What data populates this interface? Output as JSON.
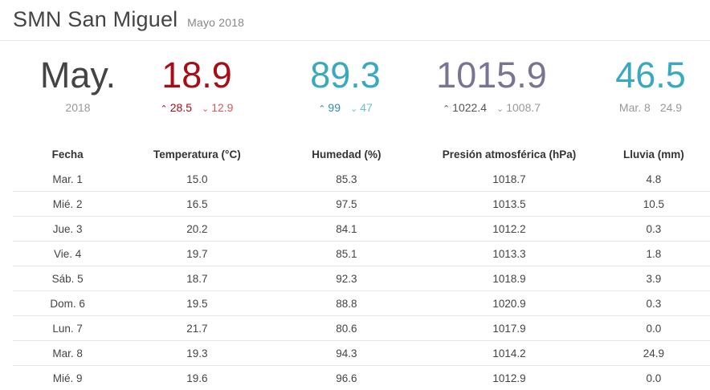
{
  "header": {
    "title": "SMN San Miguel",
    "subtitle": "Mayo 2018"
  },
  "summary": {
    "period": {
      "big": "May.",
      "sub": "2018"
    },
    "temperature": {
      "value": "18.9",
      "max": "28.5",
      "min": "12.9",
      "color": "#a80c16",
      "max_color": "#a80c16",
      "min_color": "#d35a5a"
    },
    "humidity": {
      "value": "89.3",
      "max": "99",
      "min": "47",
      "color": "#3aa9c0",
      "max_color": "#2f8ea3",
      "min_color": "#6bbfd1"
    },
    "pressure": {
      "value": "1015.9",
      "max": "1022.4",
      "min": "1008.7",
      "color": "#7a7393",
      "max_color": "#555",
      "min_color": "#999"
    },
    "rain": {
      "value": "46.5",
      "max_day": "Mar. 8",
      "max_value": "24.9",
      "color": "#3aa9c0"
    },
    "icons": {
      "up": "chevron-up-icon",
      "down": "chevron-down-icon"
    }
  },
  "table": {
    "headers": [
      "Fecha",
      "Temperatura (°C)",
      "Humedad (%)",
      "Presión atmosférica (hPa)",
      "Lluvia (mm)"
    ],
    "rows": [
      [
        "Mar. 1",
        "15.0",
        "85.3",
        "1018.7",
        "4.8"
      ],
      [
        "Mié. 2",
        "16.5",
        "97.5",
        "1013.5",
        "10.5"
      ],
      [
        "Jue. 3",
        "20.2",
        "84.1",
        "1012.2",
        "0.3"
      ],
      [
        "Vie. 4",
        "19.7",
        "85.1",
        "1013.3",
        "1.8"
      ],
      [
        "Sáb. 5",
        "18.7",
        "92.3",
        "1018.9",
        "3.9"
      ],
      [
        "Dom. 6",
        "19.5",
        "88.8",
        "1020.9",
        "0.3"
      ],
      [
        "Lun. 7",
        "21.7",
        "80.6",
        "1017.9",
        "0.0"
      ],
      [
        "Mar. 8",
        "19.3",
        "94.3",
        "1014.2",
        "24.9"
      ],
      [
        "Mié. 9",
        "19.6",
        "96.6",
        "1012.9",
        "0.0"
      ]
    ]
  }
}
